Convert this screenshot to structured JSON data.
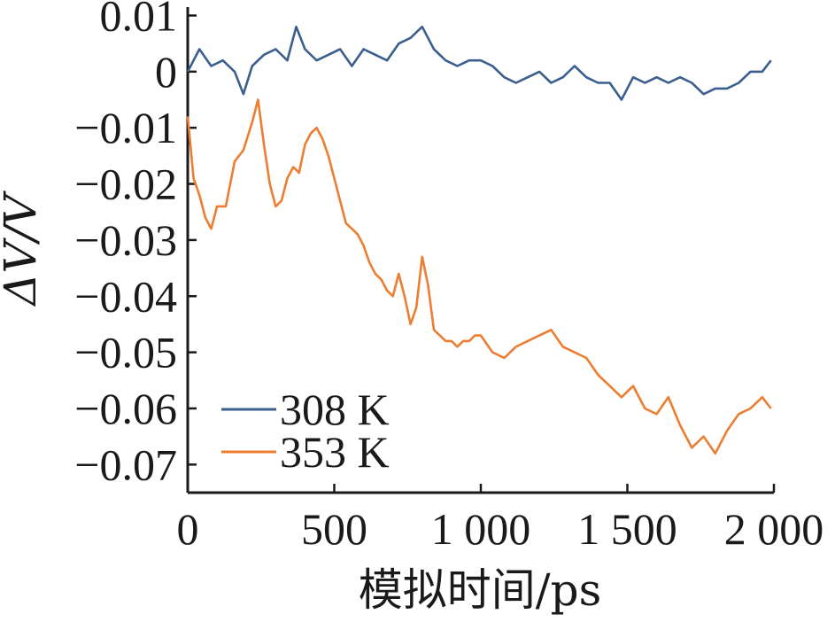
{
  "chart_data": {
    "type": "line",
    "xlabel": "模拟时间/ps",
    "ylabel": "ΔV/V",
    "xlim": [
      0,
      2000
    ],
    "ylim": [
      -0.075,
      0.0115
    ],
    "x_ticks": [
      0,
      500,
      1000,
      1500,
      2000
    ],
    "x_tick_labels": [
      "0",
      "500",
      "1 000",
      "1 500",
      "2 000"
    ],
    "y_ticks": [
      0.01,
      0,
      -0.01,
      -0.02,
      -0.03,
      -0.04,
      -0.05,
      -0.06,
      -0.07
    ],
    "y_tick_labels": [
      "0.01",
      "0",
      "−0.01",
      "−0.02",
      "−0.03",
      "−0.04",
      "−0.05",
      "−0.06",
      "−0.07"
    ],
    "grid": false,
    "legend_position": "bottom-left",
    "series": [
      {
        "name": "308 K",
        "color": "#3a5f8f",
        "x": [
          0,
          40,
          80,
          120,
          160,
          190,
          220,
          260,
          300,
          340,
          370,
          400,
          440,
          480,
          520,
          560,
          600,
          640,
          680,
          720,
          760,
          800,
          840,
          880,
          920,
          960,
          1000,
          1040,
          1080,
          1120,
          1160,
          1200,
          1240,
          1280,
          1320,
          1360,
          1400,
          1440,
          1480,
          1520,
          1560,
          1600,
          1640,
          1680,
          1720,
          1760,
          1800,
          1840,
          1880,
          1920,
          1960,
          1990
        ],
        "y": [
          0.0,
          0.004,
          0.001,
          0.002,
          0.0,
          -0.004,
          0.001,
          0.003,
          0.004,
          0.002,
          0.008,
          0.004,
          0.002,
          0.003,
          0.004,
          0.001,
          0.004,
          0.003,
          0.002,
          0.005,
          0.006,
          0.008,
          0.004,
          0.002,
          0.001,
          0.002,
          0.002,
          0.001,
          -0.001,
          -0.002,
          -0.001,
          0.0,
          -0.002,
          -0.001,
          0.001,
          -0.001,
          -0.002,
          -0.002,
          -0.005,
          -0.001,
          -0.002,
          -0.001,
          -0.002,
          -0.001,
          -0.002,
          -0.004,
          -0.003,
          -0.003,
          -0.002,
          0.0,
          0.0,
          0.002
        ]
      },
      {
        "name": "353 K",
        "color": "#ed7d31",
        "x": [
          0,
          20,
          40,
          60,
          80,
          100,
          130,
          160,
          190,
          220,
          240,
          260,
          280,
          300,
          320,
          340,
          360,
          380,
          400,
          420,
          440,
          460,
          480,
          500,
          520,
          540,
          560,
          580,
          600,
          620,
          640,
          660,
          680,
          700,
          720,
          740,
          760,
          780,
          800,
          820,
          840,
          860,
          880,
          900,
          920,
          940,
          960,
          980,
          1000,
          1040,
          1080,
          1120,
          1160,
          1200,
          1240,
          1280,
          1320,
          1360,
          1400,
          1440,
          1480,
          1520,
          1560,
          1600,
          1640,
          1680,
          1720,
          1760,
          1800,
          1840,
          1880,
          1920,
          1960,
          1990
        ],
        "y": [
          -0.008,
          -0.019,
          -0.022,
          -0.026,
          -0.028,
          -0.024,
          -0.024,
          -0.016,
          -0.014,
          -0.009,
          -0.005,
          -0.013,
          -0.02,
          -0.024,
          -0.023,
          -0.019,
          -0.017,
          -0.018,
          -0.013,
          -0.011,
          -0.01,
          -0.012,
          -0.015,
          -0.019,
          -0.023,
          -0.027,
          -0.028,
          -0.029,
          -0.031,
          -0.034,
          -0.036,
          -0.037,
          -0.039,
          -0.04,
          -0.036,
          -0.04,
          -0.045,
          -0.042,
          -0.033,
          -0.038,
          -0.046,
          -0.047,
          -0.048,
          -0.048,
          -0.049,
          -0.048,
          -0.048,
          -0.047,
          -0.047,
          -0.05,
          -0.051,
          -0.049,
          -0.048,
          -0.047,
          -0.046,
          -0.049,
          -0.05,
          -0.051,
          -0.054,
          -0.056,
          -0.058,
          -0.056,
          -0.06,
          -0.061,
          -0.058,
          -0.063,
          -0.067,
          -0.065,
          -0.068,
          -0.064,
          -0.061,
          -0.06,
          -0.058,
          -0.06
        ]
      }
    ]
  }
}
